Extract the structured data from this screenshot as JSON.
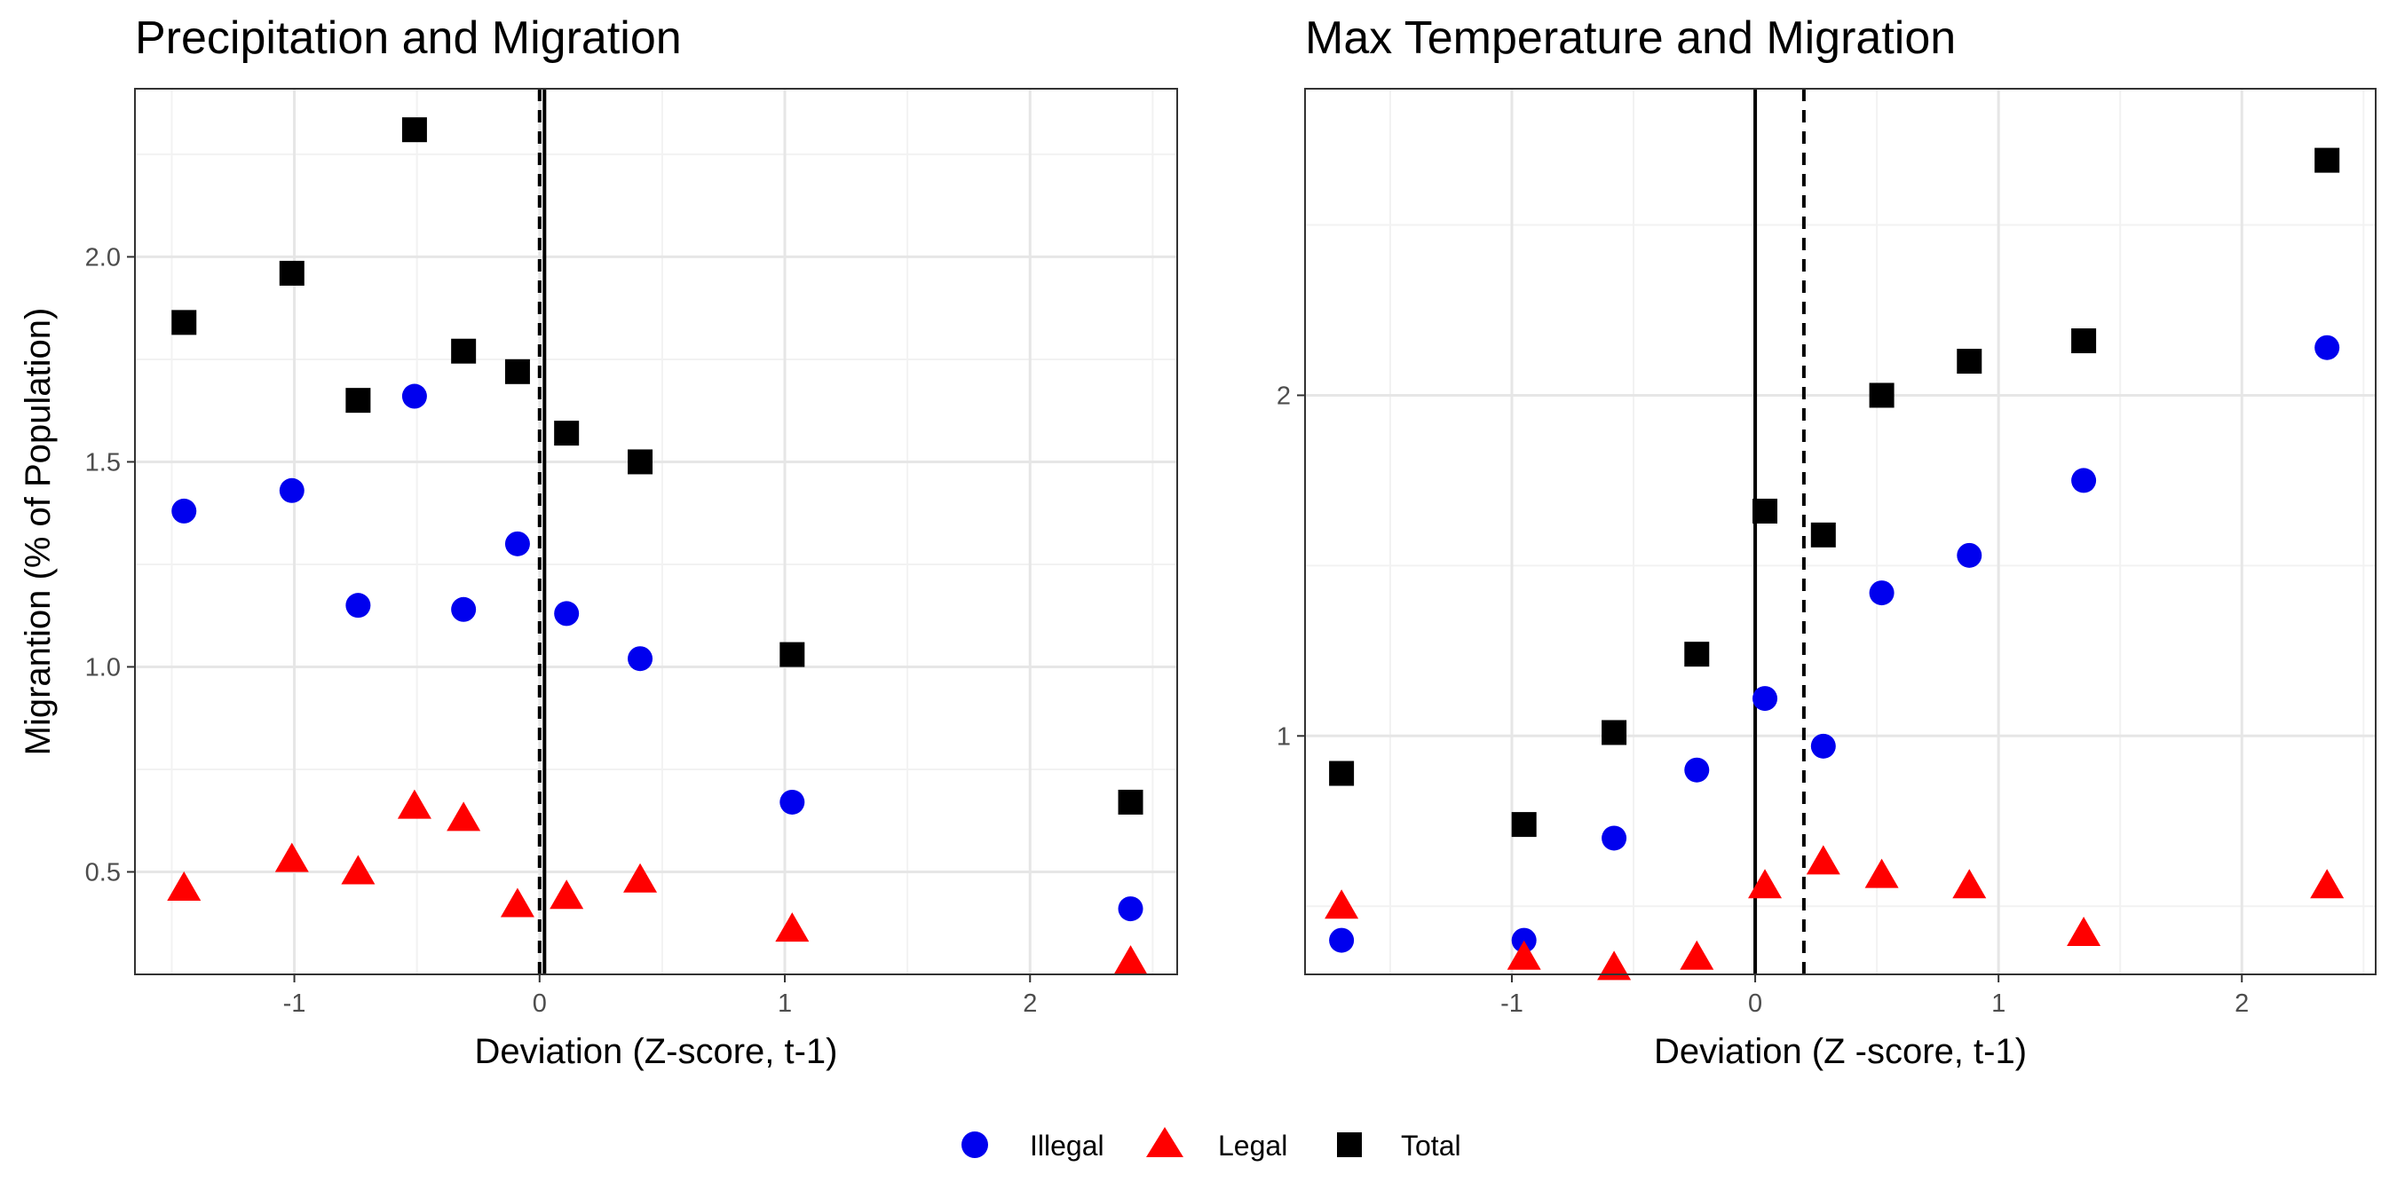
{
  "chart_data": [
    {
      "type": "scatter",
      "title": "Precipitation and Migration",
      "xlabel": "Deviation (Z-score, t-1)",
      "ylabel": "Migrantion (% of Population)",
      "xlim": [
        -1.65,
        2.6
      ],
      "ylim": [
        0.25,
        2.41
      ],
      "x_ticks": [
        -1,
        0,
        1,
        2
      ],
      "x_tick_labels": [
        "-1",
        "0",
        "1",
        "2"
      ],
      "y_ticks": [
        0.5,
        1.0,
        1.5,
        2.0
      ],
      "y_tick_labels": [
        "0.5",
        "1.0",
        "1.5",
        "2.0"
      ],
      "grid": true,
      "vlines": [
        {
          "x": 0.0,
          "style": "dashed"
        },
        {
          "x": 0.02,
          "style": "solid"
        }
      ],
      "series": [
        {
          "name": "Illegal",
          "x": [
            -1.45,
            -1.01,
            -0.74,
            -0.51,
            -0.31,
            -0.09,
            0.11,
            0.41,
            1.03,
            2.41
          ],
          "y": [
            1.38,
            1.43,
            1.15,
            1.66,
            1.14,
            1.3,
            1.13,
            1.02,
            0.67,
            0.41
          ]
        },
        {
          "name": "Legal",
          "x": [
            -1.45,
            -1.01,
            -0.74,
            -0.51,
            -0.31,
            -0.09,
            0.11,
            0.41,
            1.03,
            2.41
          ],
          "y": [
            0.46,
            0.53,
            0.5,
            0.66,
            0.63,
            0.42,
            0.44,
            0.48,
            0.36,
            0.28
          ]
        },
        {
          "name": "Total",
          "x": [
            -1.45,
            -1.01,
            -0.74,
            -0.51,
            -0.31,
            -0.09,
            0.11,
            0.41,
            1.03,
            2.41
          ],
          "y": [
            1.84,
            1.96,
            1.65,
            2.31,
            1.77,
            1.72,
            1.57,
            1.5,
            1.03,
            0.67
          ]
        }
      ]
    },
    {
      "type": "scatter",
      "title": "Max Temperature and Migration",
      "xlabel": "Deviation (Z -score, t-1)",
      "ylabel": "",
      "xlim": [
        -1.85,
        2.55
      ],
      "ylim": [
        0.3,
        2.9
      ],
      "x_ticks": [
        -1,
        0,
        1,
        2
      ],
      "x_tick_labels": [
        "-1",
        "0",
        "1",
        "2"
      ],
      "y_ticks": [
        1,
        2
      ],
      "y_tick_labels": [
        "1",
        "2"
      ],
      "grid": true,
      "vlines": [
        {
          "x": 0.0,
          "style": "solid"
        },
        {
          "x": 0.2,
          "style": "dashed"
        }
      ],
      "series": [
        {
          "name": "Illegal",
          "x": [
            -1.7,
            -0.95,
            -0.58,
            -0.24,
            0.04,
            0.28,
            0.52,
            0.88,
            1.35,
            2.35
          ],
          "y": [
            0.4,
            0.4,
            0.7,
            0.9,
            1.11,
            0.97,
            1.42,
            1.53,
            1.75,
            2.14
          ]
        },
        {
          "name": "Legal",
          "x": [
            -1.7,
            -0.95,
            -0.58,
            -0.24,
            0.04,
            0.28,
            0.52,
            0.88,
            1.35,
            2.35
          ],
          "y": [
            0.5,
            0.35,
            0.32,
            0.35,
            0.56,
            0.63,
            0.59,
            0.56,
            0.42,
            0.56
          ]
        },
        {
          "name": "Total",
          "x": [
            -1.7,
            -0.95,
            -0.58,
            -0.24,
            0.04,
            0.28,
            0.52,
            0.88,
            1.35,
            2.35
          ],
          "y": [
            0.89,
            0.74,
            1.01,
            1.24,
            1.66,
            1.59,
            2.0,
            2.1,
            2.16,
            2.69
          ]
        }
      ]
    }
  ],
  "legend": {
    "position": "bottom",
    "items": [
      {
        "label": "Illegal",
        "shape": "circle",
        "color": "#0000ee"
      },
      {
        "label": "Legal",
        "shape": "triangle",
        "color": "#ff0000"
      },
      {
        "label": "Total",
        "shape": "square",
        "color": "#000000"
      }
    ]
  },
  "colors": {
    "Illegal": "#0000ee",
    "Legal": "#ff0000",
    "Total": "#000000",
    "grid_major": "#e6e6e6",
    "grid_minor": "#f2f2f2",
    "panel_border": "#333333"
  }
}
